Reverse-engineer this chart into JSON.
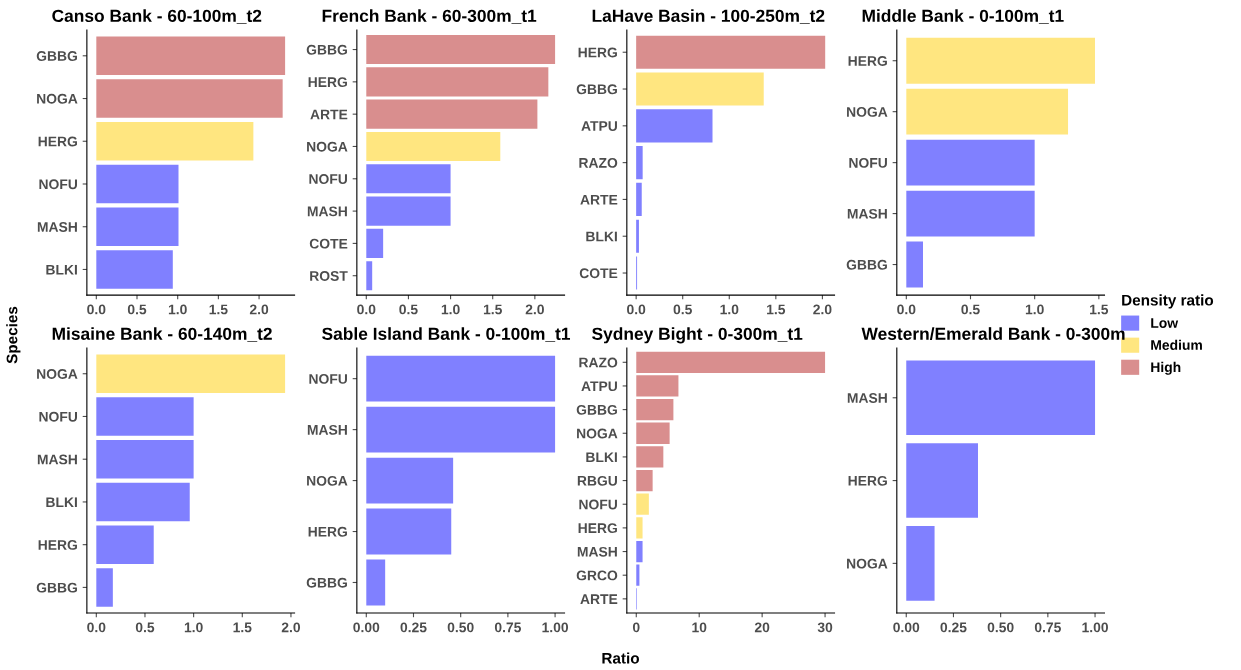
{
  "chart_data": [
    {
      "type": "bar",
      "orientation": "horizontal",
      "title": "Canso Bank - 60-100m_t2",
      "ylabel": "Species",
      "categories": [
        "GBBG",
        "NOGA",
        "HERG",
        "NOFU",
        "MASH",
        "BLKI"
      ],
      "series": [
        {
          "color": "#8080ff",
          "values": [
            null,
            null,
            null,
            1.01,
            1.01,
            0.94
          ]
        },
        {
          "color": "#ffe680",
          "values": [
            null,
            null,
            1.93,
            null,
            null,
            null
          ]
        },
        {
          "color": "#d98e8e",
          "values": [
            2.32,
            2.29,
            null,
            null,
            null,
            null
          ]
        }
      ],
      "xlim": [
        -0.116,
        2.436
      ],
      "xticks": [
        {
          "value": 0,
          "label": "0.0"
        },
        {
          "value": 0.5,
          "label": "0.5"
        },
        {
          "value": 1,
          "label": "1.0"
        },
        {
          "value": 1.5,
          "label": "1.5"
        },
        {
          "value": 2,
          "label": "2.0"
        }
      ],
      "grid": false,
      "legend": false
    },
    {
      "type": "bar",
      "orientation": "horizontal",
      "title": "French Bank - 60-300m_t1",
      "categories": [
        "GBBG",
        "HERG",
        "ARTE",
        "NOGA",
        "NOFU",
        "MASH",
        "COTE",
        "ROST"
      ],
      "series": [
        {
          "color": "#8080ff",
          "values": [
            null,
            null,
            null,
            null,
            1.0,
            1.0,
            0.2,
            0.07
          ]
        },
        {
          "color": "#ffe680",
          "values": [
            null,
            null,
            null,
            1.59,
            null,
            null,
            null,
            null
          ]
        },
        {
          "color": "#d98e8e",
          "values": [
            2.24,
            2.16,
            2.03,
            null,
            null,
            null,
            null,
            null
          ]
        }
      ],
      "xlim": [
        -0.112,
        2.352
      ],
      "xticks": [
        {
          "value": 0,
          "label": "0.0"
        },
        {
          "value": 0.5,
          "label": "0.5"
        },
        {
          "value": 1,
          "label": "1.0"
        },
        {
          "value": 1.5,
          "label": "1.5"
        },
        {
          "value": 2,
          "label": "2.0"
        }
      ],
      "grid": false,
      "legend": false
    },
    {
      "type": "bar",
      "orientation": "horizontal",
      "title": "LaHave Basin - 100-250m_t2",
      "categories": [
        "HERG",
        "GBBG",
        "ATPU",
        "RAZO",
        "ARTE",
        "BLKI",
        "COTE"
      ],
      "series": [
        {
          "color": "#8080ff",
          "values": [
            null,
            null,
            0.82,
            0.07,
            0.06,
            0.03,
            0.01
          ]
        },
        {
          "color": "#ffe680",
          "values": [
            null,
            1.37,
            null,
            null,
            null,
            null,
            null
          ]
        },
        {
          "color": "#d98e8e",
          "values": [
            2.03,
            null,
            null,
            null,
            null,
            null,
            null
          ]
        }
      ],
      "xlim": [
        -0.1,
        2.13
      ],
      "xticks": [
        {
          "value": 0,
          "label": "0.0"
        },
        {
          "value": 0.5,
          "label": "0.5"
        },
        {
          "value": 1,
          "label": "1.0"
        },
        {
          "value": 1.5,
          "label": "1.5"
        },
        {
          "value": 2,
          "label": "2.0"
        }
      ],
      "grid": false,
      "legend": false
    },
    {
      "type": "bar",
      "orientation": "horizontal",
      "title": "Middle Bank - 0-100m_t1",
      "categories": [
        "HERG",
        "NOGA",
        "NOFU",
        "MASH",
        "GBBG"
      ],
      "series": [
        {
          "name": "Low",
          "color": "#8080ff",
          "values": [
            null,
            null,
            1.0,
            1.0,
            0.13
          ]
        },
        {
          "name": "Medium",
          "color": "#ffe680",
          "values": [
            1.47,
            1.26,
            null,
            null,
            null
          ]
        },
        {
          "name": "High",
          "color": "#d98e8e",
          "values": [
            null,
            null,
            null,
            null,
            null
          ]
        }
      ],
      "xlim": [
        -0.074,
        1.544
      ],
      "xticks": [
        {
          "value": 0,
          "label": "0.0"
        },
        {
          "value": 0.5,
          "label": "0.5"
        },
        {
          "value": 1,
          "label": "1.0"
        },
        {
          "value": 1.5,
          "label": "1.5"
        }
      ],
      "grid": false,
      "legend": "right",
      "legend_title": "Density ratio"
    },
    {
      "type": "bar",
      "orientation": "horizontal",
      "title": "Misaine Bank - 60-140m_t2",
      "categories": [
        "NOGA",
        "NOFU",
        "MASH",
        "BLKI",
        "HERG",
        "GBBG"
      ],
      "series": [
        {
          "color": "#8080ff",
          "values": [
            null,
            1.0,
            1.0,
            0.96,
            0.59,
            0.17
          ]
        },
        {
          "color": "#ffe680",
          "values": [
            1.94,
            null,
            null,
            null,
            null,
            null
          ]
        }
      ],
      "xlim": [
        -0.097,
        2.037
      ],
      "xticks": [
        {
          "value": 0,
          "label": "0.0"
        },
        {
          "value": 0.5,
          "label": "0.5"
        },
        {
          "value": 1,
          "label": "1.0"
        },
        {
          "value": 1.5,
          "label": "1.5"
        },
        {
          "value": 2,
          "label": "2.0"
        }
      ],
      "grid": false,
      "legend": false
    },
    {
      "type": "bar",
      "orientation": "horizontal",
      "title": "Sable Island Bank - 0-100m_t1",
      "xlabel": "Ratio",
      "categories": [
        "NOFU",
        "MASH",
        "NOGA",
        "HERG",
        "GBBG"
      ],
      "series": [
        {
          "color": "#8080ff",
          "values": [
            1.0,
            1.0,
            0.46,
            0.45,
            0.1
          ]
        }
      ],
      "xlim": [
        -0.05,
        1.05
      ],
      "xticks": [
        {
          "value": 0,
          "label": "0.00"
        },
        {
          "value": 0.25,
          "label": "0.25"
        },
        {
          "value": 0.5,
          "label": "0.50"
        },
        {
          "value": 0.75,
          "label": "0.75"
        },
        {
          "value": 1,
          "label": "1.00"
        }
      ],
      "grid": false,
      "legend": false
    },
    {
      "type": "bar",
      "orientation": "horizontal",
      "title": "Sydney Bight - 0-300m_t1",
      "categories": [
        "RAZO",
        "ATPU",
        "GBBG",
        "NOGA",
        "BLKI",
        "RBGU",
        "NOFU",
        "HERG",
        "MASH",
        "GRCO",
        "ARTE"
      ],
      "series": [
        {
          "color": "#8080ff",
          "values": [
            null,
            null,
            null,
            null,
            null,
            null,
            null,
            null,
            1.0,
            0.5,
            0.1
          ]
        },
        {
          "color": "#ffe680",
          "values": [
            null,
            null,
            null,
            null,
            null,
            null,
            2.0,
            1.0,
            null,
            null,
            null
          ]
        },
        {
          "color": "#d98e8e",
          "values": [
            30.0,
            6.7,
            5.9,
            5.3,
            4.3,
            2.6,
            null,
            null,
            null,
            null,
            null
          ]
        }
      ],
      "xlim": [
        -1.5,
        31.5
      ],
      "xticks": [
        0,
        10,
        20,
        30
      ],
      "grid": false,
      "legend": false
    },
    {
      "type": "bar",
      "orientation": "horizontal",
      "title": "Western/Emerald Bank - 0-300m",
      "categories": [
        "MASH",
        "HERG",
        "NOGA"
      ],
      "series": [
        {
          "color": "#8080ff",
          "values": [
            1.0,
            0.38,
            0.15
          ]
        }
      ],
      "xlim": [
        -0.05,
        1.05
      ],
      "xticks": [
        {
          "value": 0,
          "label": "0.00"
        },
        {
          "value": 0.25,
          "label": "0.25"
        },
        {
          "value": 0.5,
          "label": "0.50"
        },
        {
          "value": 0.75,
          "label": "0.75"
        },
        {
          "value": 1,
          "label": "1.00"
        }
      ],
      "grid": false,
      "legend": false
    }
  ]
}
